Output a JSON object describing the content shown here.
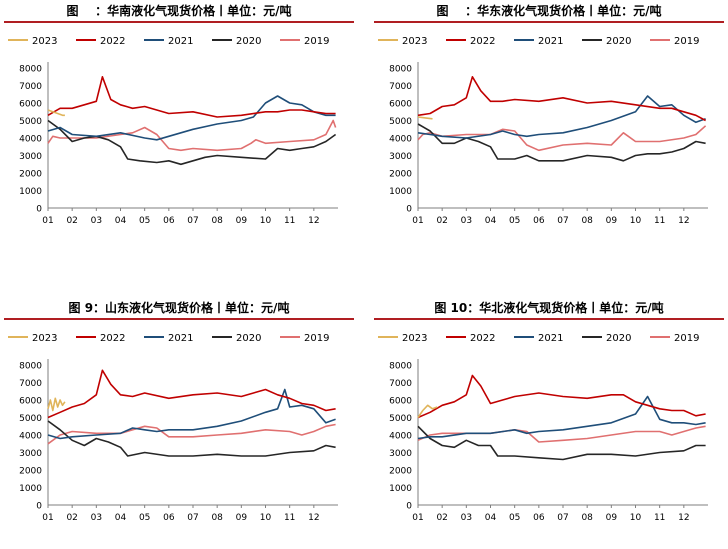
{
  "colors": {
    "2023": "#e0b45a",
    "2022": "#c00000",
    "2021": "#1f4e79",
    "2020": "#262626",
    "2019": "#e07070"
  },
  "chart_data": [
    {
      "type": "line",
      "title": "图    ：华南液化气现货价格丨单位：元/吨",
      "ylim": [
        0,
        8000
      ],
      "yticks": [
        "0",
        "1000",
        "2000",
        "3000",
        "4000",
        "5000",
        "6000",
        "7000",
        "8000"
      ],
      "xticks": [
        "01",
        "02",
        "03",
        "04",
        "05",
        "06",
        "07",
        "08",
        "09",
        "10",
        "11",
        "12"
      ],
      "legend_position": "top",
      "series": [
        {
          "name": "2023",
          "x": [
            1.0,
            1.2,
            1.4,
            1.6,
            1.7
          ],
          "values": [
            5600,
            5500,
            5400,
            5300,
            5300
          ]
        },
        {
          "name": "2022",
          "x": [
            1.0,
            1.5,
            2.0,
            2.5,
            3.0,
            3.25,
            3.6,
            4.0,
            4.5,
            5.0,
            6.0,
            7.0,
            8.0,
            9.0,
            10.0,
            10.5,
            11.0,
            11.5,
            12.0,
            12.5,
            12.9
          ],
          "values": [
            5300,
            5700,
            5700,
            5900,
            6100,
            7500,
            6200,
            5900,
            5700,
            5800,
            5400,
            5500,
            5200,
            5300,
            5500,
            5500,
            5600,
            5600,
            5500,
            5400,
            5400
          ]
        },
        {
          "name": "2021",
          "x": [
            1.0,
            1.5,
            2.0,
            3.0,
            4.0,
            5.0,
            5.5,
            6.0,
            7.0,
            8.0,
            9.0,
            9.5,
            10.0,
            10.5,
            11.0,
            11.5,
            12.0,
            12.5,
            12.9
          ],
          "values": [
            4400,
            4600,
            4200,
            4100,
            4300,
            4000,
            3900,
            4100,
            4500,
            4800,
            5000,
            5200,
            6000,
            6400,
            6000,
            5900,
            5500,
            5300,
            5300
          ]
        },
        {
          "name": "2020",
          "x": [
            1.0,
            1.5,
            2.0,
            2.5,
            3.0,
            3.5,
            4.0,
            4.3,
            4.8,
            5.5,
            6.0,
            6.5,
            7.0,
            7.5,
            8.0,
            9.0,
            10.0,
            10.5,
            11.0,
            11.5,
            12.0,
            12.5,
            12.9
          ],
          "values": [
            5000,
            4500,
            3800,
            4000,
            4100,
            3900,
            3500,
            2800,
            2700,
            2600,
            2700,
            2500,
            2700,
            2900,
            3000,
            2900,
            2800,
            3400,
            3300,
            3400,
            3500,
            3800,
            4200
          ]
        },
        {
          "name": "2019",
          "x": [
            1.0,
            1.2,
            1.5,
            2.0,
            3.0,
            4.0,
            4.5,
            5.0,
            5.5,
            6.0,
            6.5,
            7.0,
            8.0,
            9.0,
            9.4,
            9.6,
            10.0,
            11.0,
            12.0,
            12.5,
            12.8,
            12.9
          ],
          "values": [
            3700,
            4100,
            4000,
            4000,
            4000,
            4200,
            4300,
            4600,
            4200,
            3400,
            3300,
            3400,
            3300,
            3400,
            3700,
            3900,
            3700,
            3800,
            3900,
            4200,
            5000,
            4600
          ]
        }
      ]
    },
    {
      "type": "line",
      "title": "图    ：华东液化气现货价格丨单位：元/吨",
      "ylim": [
        0,
        8000
      ],
      "yticks": [
        "0",
        "1000",
        "2000",
        "3000",
        "4000",
        "5000",
        "6000",
        "7000",
        "8000"
      ],
      "xticks": [
        "01",
        "02",
        "03",
        "04",
        "05",
        "06",
        "07",
        "08",
        "09",
        "10",
        "11",
        "12"
      ],
      "legend_position": "top",
      "series": [
        {
          "name": "2023",
          "x": [
            1.0,
            1.3,
            1.6
          ],
          "values": [
            5200,
            5150,
            5100
          ]
        },
        {
          "name": "2022",
          "x": [
            1.0,
            1.5,
            2.0,
            2.5,
            3.0,
            3.25,
            3.6,
            4.0,
            4.5,
            5.0,
            6.0,
            7.0,
            8.0,
            9.0,
            10.0,
            11.0,
            11.5,
            12.0,
            12.5,
            12.9
          ],
          "values": [
            5300,
            5400,
            5800,
            5900,
            6300,
            7500,
            6700,
            6100,
            6100,
            6200,
            6100,
            6300,
            6000,
            6100,
            5900,
            5700,
            5700,
            5500,
            5300,
            5000
          ]
        },
        {
          "name": "2021",
          "x": [
            1.0,
            1.5,
            2.0,
            3.0,
            4.0,
            4.5,
            5.0,
            5.5,
            6.0,
            7.0,
            8.0,
            9.0,
            10.0,
            10.5,
            11.0,
            11.5,
            12.0,
            12.5,
            12.9
          ],
          "values": [
            4300,
            4200,
            4100,
            4000,
            4200,
            4400,
            4200,
            4100,
            4200,
            4300,
            4600,
            5000,
            5500,
            6400,
            5800,
            5900,
            5300,
            4900,
            5100
          ]
        },
        {
          "name": "2020",
          "x": [
            1.0,
            1.5,
            2.0,
            2.5,
            3.0,
            3.5,
            4.0,
            4.3,
            5.0,
            5.5,
            6.0,
            7.0,
            8.0,
            9.0,
            9.5,
            10.0,
            10.5,
            11.0,
            11.5,
            12.0,
            12.5,
            12.9
          ],
          "values": [
            4800,
            4400,
            3700,
            3700,
            4000,
            3800,
            3500,
            2800,
            2800,
            3000,
            2700,
            2700,
            3000,
            2900,
            2700,
            3000,
            3100,
            3100,
            3200,
            3400,
            3800,
            3700
          ]
        },
        {
          "name": "2019",
          "x": [
            1.0,
            1.2,
            1.5,
            2.0,
            3.0,
            4.0,
            4.5,
            5.0,
            5.5,
            6.0,
            7.0,
            8.0,
            9.0,
            9.5,
            9.7,
            10.0,
            11.0,
            12.0,
            12.5,
            12.9
          ],
          "values": [
            3900,
            4200,
            4300,
            4100,
            4200,
            4200,
            4500,
            4400,
            3600,
            3300,
            3600,
            3700,
            3600,
            4300,
            4100,
            3800,
            3800,
            4000,
            4200,
            4700
          ]
        }
      ]
    },
    {
      "type": "line",
      "title": "图 9：山东液化气现货价格丨单位：元/吨",
      "ylim": [
        0,
        8000
      ],
      "yticks": [
        "0",
        "1000",
        "2000",
        "3000",
        "4000",
        "5000",
        "6000",
        "7000",
        "8000"
      ],
      "xticks": [
        "01",
        "02",
        "03",
        "04",
        "05",
        "06",
        "07",
        "08",
        "09",
        "10",
        "11",
        "12"
      ],
      "legend_position": "top",
      "series": [
        {
          "name": "2023",
          "x": [
            1.0,
            1.1,
            1.2,
            1.3,
            1.4,
            1.5,
            1.6,
            1.7
          ],
          "values": [
            5500,
            6000,
            5400,
            6100,
            5600,
            6000,
            5700,
            5900
          ]
        },
        {
          "name": "2022",
          "x": [
            1.0,
            1.5,
            2.0,
            2.5,
            3.0,
            3.25,
            3.6,
            4.0,
            4.5,
            5.0,
            6.0,
            7.0,
            8.0,
            9.0,
            10.0,
            10.5,
            11.0,
            11.5,
            12.0,
            12.5,
            12.9
          ],
          "values": [
            5000,
            5300,
            5600,
            5800,
            6300,
            7700,
            6900,
            6300,
            6200,
            6400,
            6100,
            6300,
            6400,
            6200,
            6600,
            6300,
            6100,
            5800,
            5700,
            5400,
            5500
          ]
        },
        {
          "name": "2021",
          "x": [
            1.0,
            1.5,
            2.0,
            3.0,
            4.0,
            4.5,
            5.0,
            5.5,
            6.0,
            7.0,
            8.0,
            9.0,
            10.0,
            10.5,
            10.8,
            11.0,
            11.5,
            12.0,
            12.5,
            12.9
          ],
          "values": [
            4000,
            3800,
            3900,
            4000,
            4100,
            4400,
            4300,
            4200,
            4300,
            4300,
            4500,
            4800,
            5300,
            5500,
            6600,
            5600,
            5700,
            5500,
            4700,
            4900
          ]
        },
        {
          "name": "2020",
          "x": [
            1.0,
            1.5,
            2.0,
            2.5,
            3.0,
            3.5,
            4.0,
            4.3,
            5.0,
            6.0,
            7.0,
            8.0,
            9.0,
            10.0,
            11.0,
            12.0,
            12.5,
            12.9
          ],
          "values": [
            4800,
            4300,
            3700,
            3400,
            3800,
            3600,
            3300,
            2800,
            3000,
            2800,
            2800,
            2900,
            2800,
            2800,
            3000,
            3100,
            3400,
            3300
          ]
        },
        {
          "name": "2019",
          "x": [
            1.0,
            1.5,
            2.0,
            3.0,
            4.0,
            5.0,
            5.5,
            6.0,
            7.0,
            8.0,
            9.0,
            10.0,
            11.0,
            11.5,
            12.0,
            12.5,
            12.9
          ],
          "values": [
            3500,
            4000,
            4200,
            4100,
            4100,
            4500,
            4400,
            3900,
            3900,
            4000,
            4100,
            4300,
            4200,
            4000,
            4200,
            4500,
            4600
          ]
        }
      ]
    },
    {
      "type": "line",
      "title": "图 10：华北液化气现货价格丨单位：元/吨",
      "ylim": [
        0,
        8000
      ],
      "yticks": [
        "0",
        "1000",
        "2000",
        "3000",
        "4000",
        "5000",
        "6000",
        "7000",
        "8000"
      ],
      "xticks": [
        "01",
        "02",
        "03",
        "04",
        "05",
        "06",
        "07",
        "08",
        "09",
        "10",
        "11",
        "12"
      ],
      "legend_position": "top",
      "series": [
        {
          "name": "2023",
          "x": [
            1.0,
            1.2,
            1.4,
            1.6,
            1.8
          ],
          "values": [
            5000,
            5400,
            5700,
            5500,
            5600
          ]
        },
        {
          "name": "2022",
          "x": [
            1.0,
            1.5,
            2.0,
            2.5,
            3.0,
            3.25,
            3.6,
            4.0,
            4.5,
            5.0,
            6.0,
            7.0,
            8.0,
            9.0,
            9.5,
            10.0,
            11.0,
            11.5,
            12.0,
            12.5,
            12.9
          ],
          "values": [
            5000,
            5300,
            5700,
            5900,
            6300,
            7400,
            6800,
            5800,
            6000,
            6200,
            6400,
            6200,
            6100,
            6300,
            6300,
            5900,
            5500,
            5400,
            5400,
            5100,
            5200
          ]
        },
        {
          "name": "2021",
          "x": [
            1.0,
            1.5,
            2.0,
            3.0,
            4.0,
            5.0,
            5.5,
            6.0,
            7.0,
            8.0,
            9.0,
            10.0,
            10.5,
            11.0,
            11.5,
            12.0,
            12.5,
            12.9
          ],
          "values": [
            3800,
            3900,
            3900,
            4100,
            4100,
            4300,
            4100,
            4200,
            4300,
            4500,
            4700,
            5200,
            6200,
            4900,
            4700,
            4700,
            4600,
            4700
          ]
        },
        {
          "name": "2020",
          "x": [
            1.0,
            1.5,
            2.0,
            2.5,
            3.0,
            3.5,
            4.0,
            4.3,
            5.0,
            6.0,
            7.0,
            8.0,
            9.0,
            10.0,
            11.0,
            12.0,
            12.5,
            12.9
          ],
          "values": [
            4500,
            3800,
            3400,
            3300,
            3700,
            3400,
            3400,
            2800,
            2800,
            2700,
            2600,
            2900,
            2900,
            2800,
            3000,
            3100,
            3400,
            3400
          ]
        },
        {
          "name": "2019",
          "x": [
            1.0,
            1.5,
            2.0,
            3.0,
            4.0,
            5.0,
            5.5,
            6.0,
            7.0,
            8.0,
            9.0,
            10.0,
            11.0,
            11.5,
            12.0,
            12.5,
            12.9
          ],
          "values": [
            3700,
            4000,
            4100,
            4100,
            4100,
            4300,
            4200,
            3600,
            3700,
            3800,
            4000,
            4200,
            4200,
            4000,
            4200,
            4400,
            4500
          ]
        }
      ]
    }
  ]
}
